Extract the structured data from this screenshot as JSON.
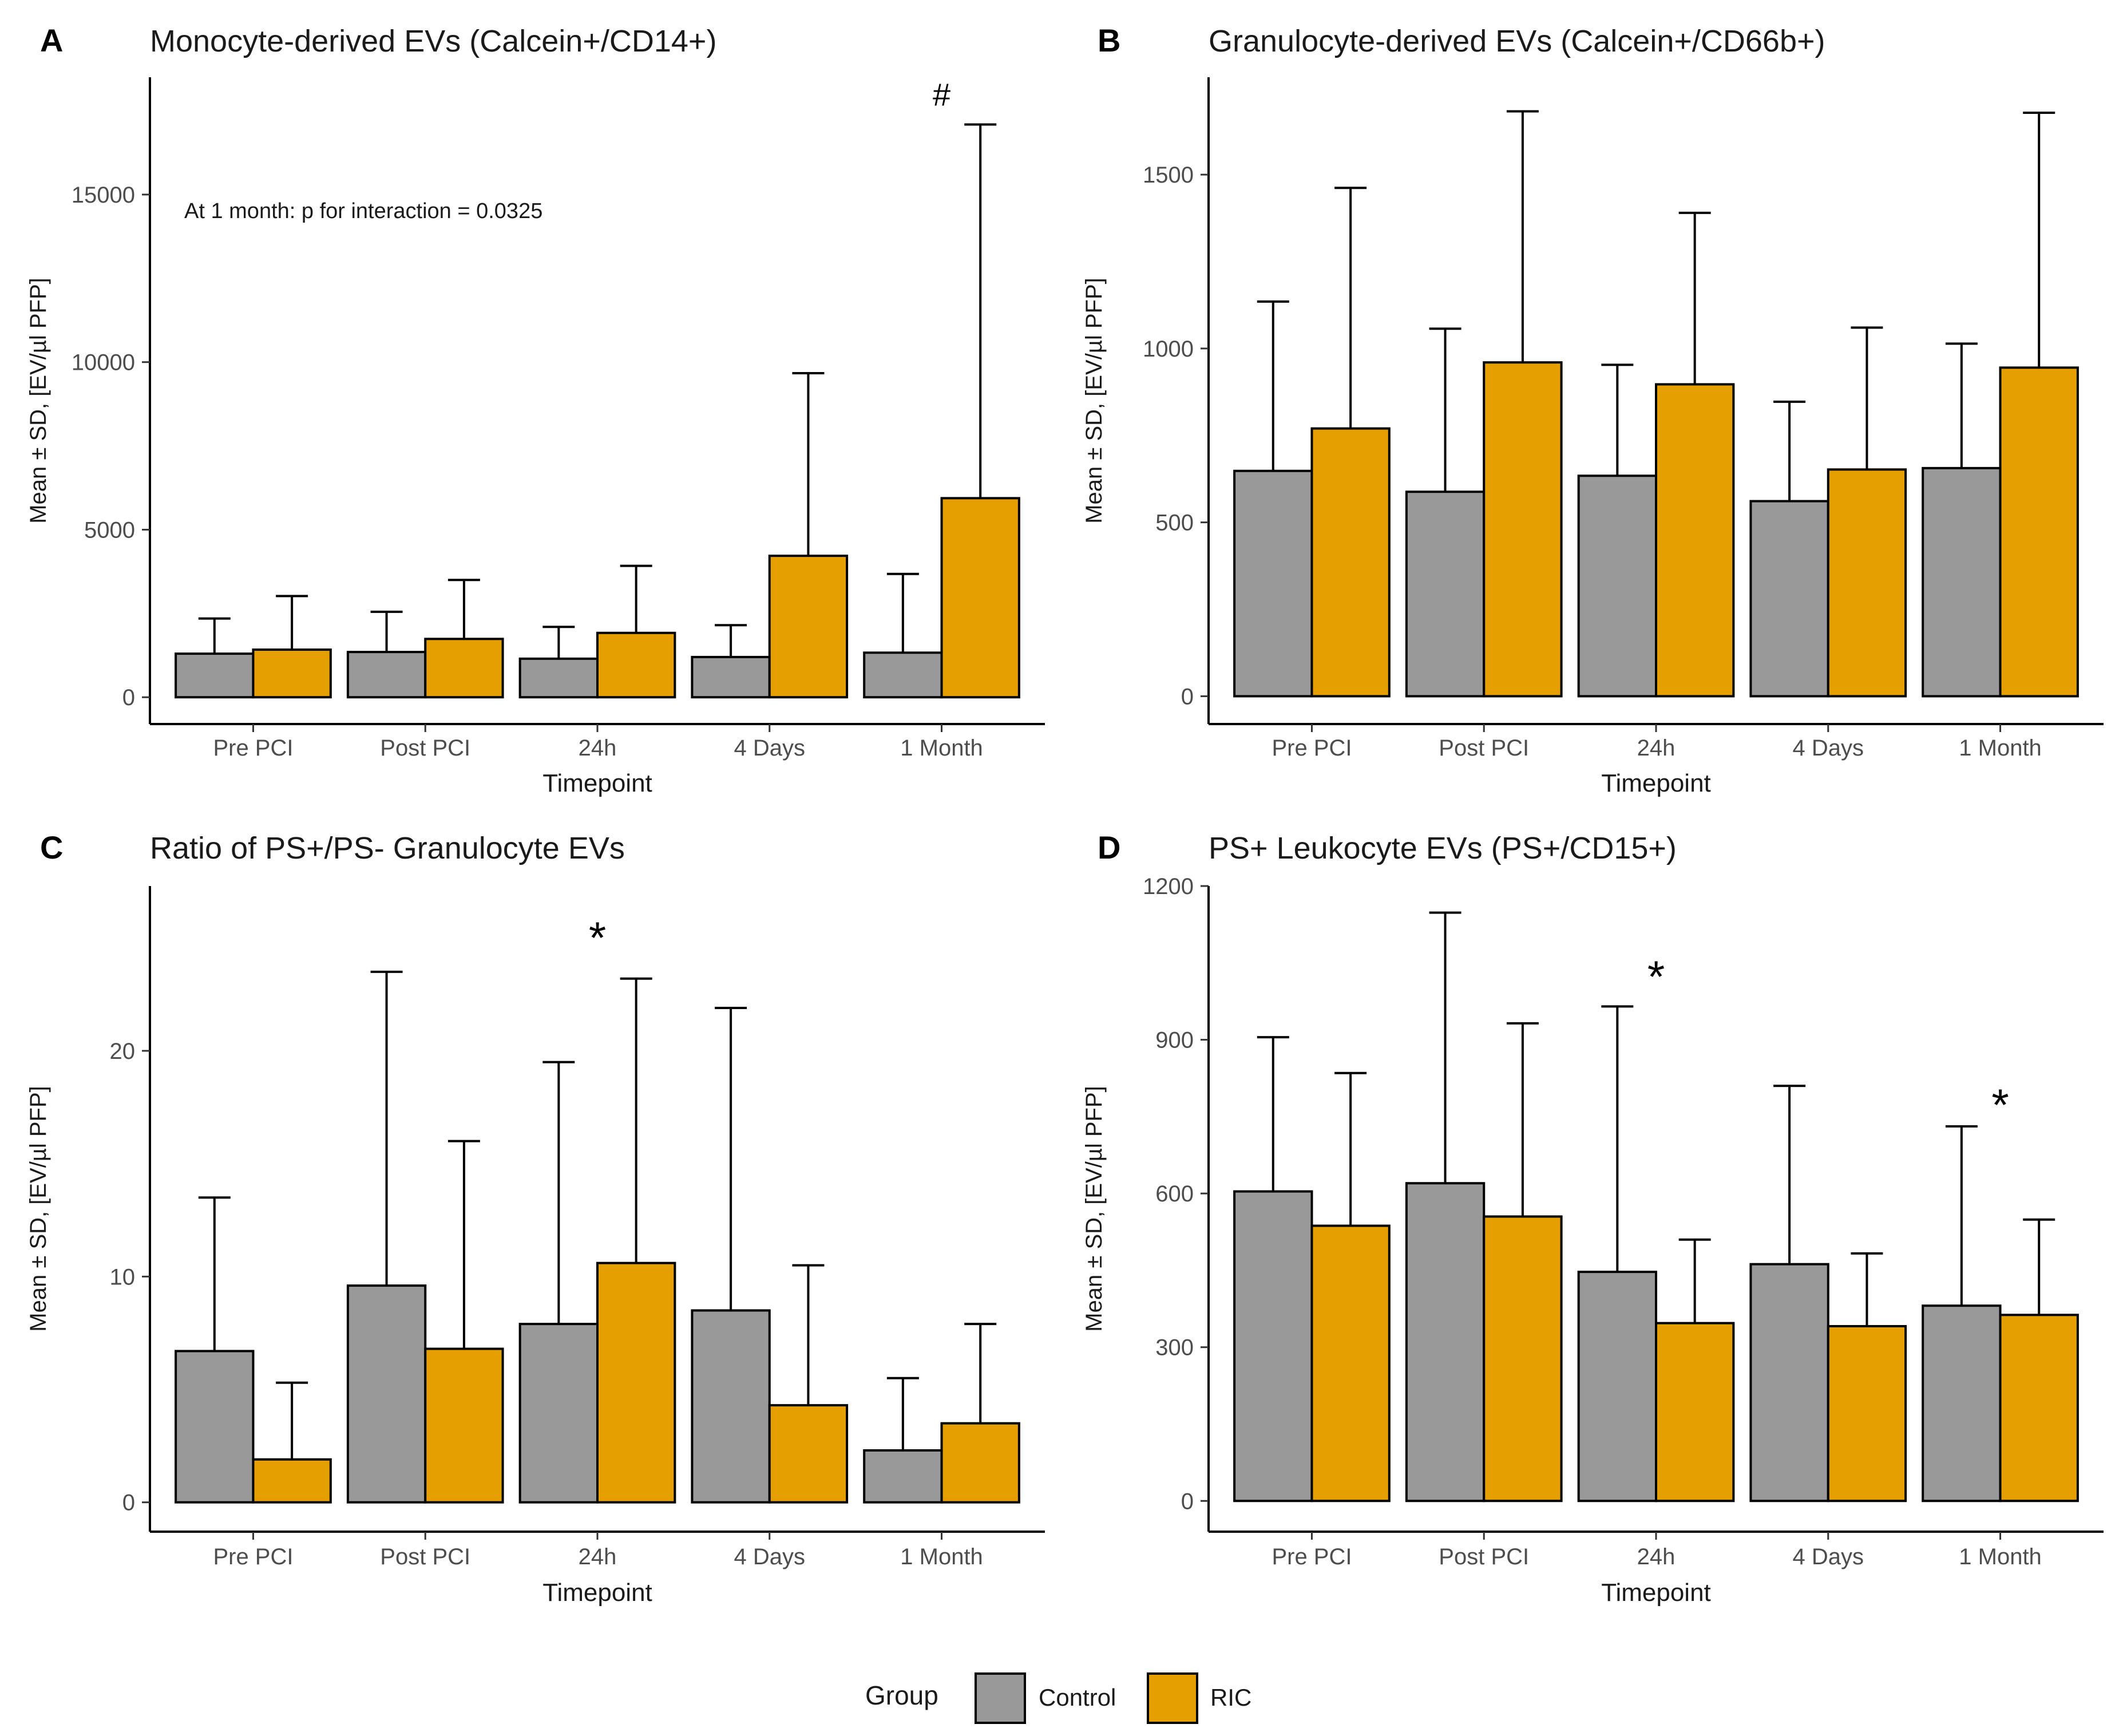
{
  "chart_data": [
    {
      "panel": "A",
      "type": "bar",
      "title": "Monocyte-derived EVs (Calcein+/CD14+)",
      "xlabel": "Timepoint",
      "ylabel": "Mean ± SD, [EV/µl PFP]",
      "ylim": [
        -800,
        18500
      ],
      "yticks": [
        0,
        5000,
        10000,
        15000
      ],
      "categories": [
        "Pre PCI",
        "Post PCI",
        "24h",
        "4 Days",
        "1 Month"
      ],
      "series": [
        {
          "name": "Control",
          "values": [
            1300,
            1350,
            1150,
            1200,
            1330
          ],
          "sd": [
            1050,
            1200,
            950,
            950,
            2350
          ]
        },
        {
          "name": "RIC",
          "values": [
            1420,
            1740,
            1920,
            4220,
            5940
          ],
          "sd": [
            1600,
            1760,
            2000,
            5450,
            11150
          ]
        }
      ],
      "annotations": [
        {
          "text": "At 1 month: p for interaction = 0.0325",
          "kind": "note"
        },
        {
          "text": "#",
          "kind": "marker",
          "category": "1 Month",
          "y": 18000
        }
      ]
    },
    {
      "panel": "B",
      "type": "bar",
      "title": "Granulocyte-derived EVs (Calcein+/CD66b+)",
      "xlabel": "Timepoint",
      "ylabel": "Mean ± SD, [EV/µl PFP]",
      "ylim": [
        -80,
        1780
      ],
      "yticks": [
        0,
        500,
        1000,
        1500
      ],
      "categories": [
        "Pre PCI",
        "Post PCI",
        "24h",
        "4 Days",
        "1 Month"
      ],
      "series": [
        {
          "name": "Control",
          "values": [
            648,
            588,
            634,
            561,
            656
          ],
          "sd": [
            487,
            469,
            319,
            286,
            358
          ]
        },
        {
          "name": "RIC",
          "values": [
            770,
            960,
            897,
            652,
            945
          ],
          "sd": [
            692,
            722,
            493,
            408,
            733
          ]
        }
      ],
      "annotations": []
    },
    {
      "panel": "C",
      "type": "bar",
      "title": "Ratio of PS+/PS- Granulocyte EVs",
      "xlabel": "Timepoint",
      "ylabel": "Mean ± SD, [EV/µl PFP]",
      "ylim": [
        -1.3,
        27.3
      ],
      "yticks": [
        0,
        10,
        20
      ],
      "categories": [
        "Pre PCI",
        "Post PCI",
        "24h",
        "4 Days",
        "1 Month"
      ],
      "series": [
        {
          "name": "Control",
          "values": [
            6.7,
            9.6,
            7.9,
            8.5,
            2.3
          ],
          "sd": [
            6.8,
            13.9,
            11.6,
            13.4,
            3.2
          ]
        },
        {
          "name": "RIC",
          "values": [
            1.9,
            6.8,
            10.6,
            4.3,
            3.5
          ],
          "sd": [
            3.4,
            9.2,
            12.6,
            6.2,
            4.4
          ]
        }
      ],
      "annotations": [
        {
          "text": "*",
          "kind": "marker",
          "category": "24h",
          "y": 25.4
        }
      ]
    },
    {
      "panel": "D",
      "type": "bar",
      "title": "PS+ Leukocyte EVs (PS+/CD15+)",
      "xlabel": "Timepoint",
      "ylabel": "Mean ± SD, [EV/µl PFP]",
      "ylim": [
        -60,
        1200
      ],
      "yticks": [
        0,
        300,
        600,
        900,
        1200
      ],
      "categories": [
        "Pre PCI",
        "Post PCI",
        "24h",
        "4 Days",
        "1 Month"
      ],
      "series": [
        {
          "name": "Control",
          "values": [
            604,
            620,
            447,
            462,
            381
          ],
          "sd": [
            301,
            528,
            518,
            348,
            350
          ]
        },
        {
          "name": "RIC",
          "values": [
            537,
            555,
            347,
            341,
            363
          ],
          "sd": [
            298,
            377,
            163,
            142,
            186
          ]
        }
      ],
      "annotations": [
        {
          "text": "*",
          "kind": "marker",
          "category": "24h",
          "y": 1040
        },
        {
          "text": "*",
          "kind": "marker",
          "category": "1 Month",
          "y": 790
        }
      ]
    }
  ],
  "legend": {
    "title": "Group",
    "items": [
      {
        "label": "Control",
        "color": "#999999"
      },
      {
        "label": "RIC",
        "color": "#E69F00"
      }
    ]
  }
}
